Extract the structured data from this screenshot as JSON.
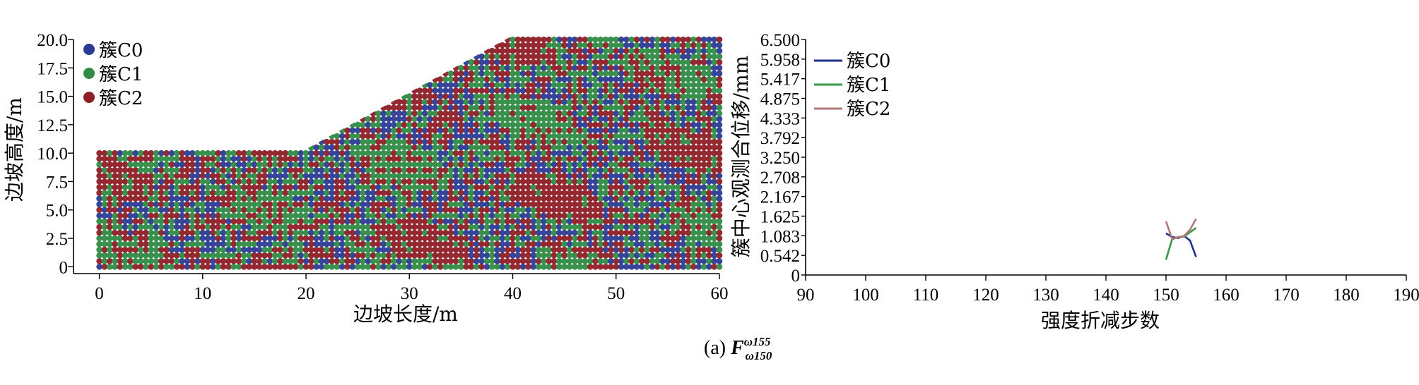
{
  "colors": {
    "c0": "#2b3a94",
    "c1": "#2e8b43",
    "c2": "#8e1e26",
    "line_c0": "#1f2f8c",
    "line_c1": "#3a9a4a",
    "line_c2": "#b07a78"
  },
  "caption": {
    "prefix": "(a) ",
    "base": "F",
    "sup": "ω155",
    "sub": "ω150"
  },
  "chart_data": [
    {
      "type": "scatter",
      "xlabel": "边坡长度/m",
      "ylabel": "边坡高度/m",
      "xlim": [
        -2.5,
        60
      ],
      "ylim": [
        -0.6,
        20
      ],
      "xticks": [
        "0",
        "10",
        "20",
        "30",
        "40",
        "50",
        "60"
      ],
      "xtick_values": [
        0,
        10,
        20,
        30,
        40,
        50,
        60
      ],
      "yticks": [
        "0",
        "2.5",
        "5.0",
        "7.5",
        "10.0",
        "12.5",
        "15.0",
        "17.5",
        "20.0"
      ],
      "ytick_values": [
        0,
        2.5,
        5,
        7.5,
        10,
        12.5,
        15,
        17.5,
        20
      ],
      "slope_outline": [
        [
          0,
          0
        ],
        [
          0,
          10
        ],
        [
          20,
          10
        ],
        [
          40,
          20
        ],
        [
          60,
          20
        ],
        [
          60,
          0
        ]
      ],
      "legend": {
        "position": "top-left",
        "entries": [
          "簇C0",
          "簇C1",
          "簇C2"
        ]
      },
      "series": [
        {
          "name": "簇C0"
        },
        {
          "name": "簇C1"
        },
        {
          "name": "簇C2"
        }
      ]
    },
    {
      "type": "line",
      "xlabel": "强度折减步数",
      "ylabel": "簇中心观测合位移/mm",
      "xlim": [
        90,
        190
      ],
      "ylim": [
        0,
        6.5
      ],
      "xticks": [
        "90",
        "100",
        "110",
        "120",
        "130",
        "140",
        "150",
        "160",
        "170",
        "180",
        "190"
      ],
      "xtick_values": [
        90,
        100,
        110,
        120,
        130,
        140,
        150,
        160,
        170,
        180,
        190
      ],
      "yticks": [
        "0",
        "0.542",
        "1.083",
        "1.625",
        "2.167",
        "2.708",
        "3.250",
        "3.792",
        "4.333",
        "4.875",
        "5.417",
        "5.958",
        "6.500"
      ],
      "ytick_values": [
        0,
        0.542,
        1.083,
        1.625,
        2.167,
        2.708,
        3.25,
        3.792,
        4.333,
        4.875,
        5.417,
        5.958,
        6.5
      ],
      "legend": {
        "position": "top-left",
        "entries": [
          "簇C0",
          "簇C1",
          "簇C2"
        ]
      },
      "x": [
        150,
        151,
        152,
        153,
        154,
        155
      ],
      "series": [
        {
          "name": "簇C0",
          "values": [
            1.15,
            1.05,
            1.02,
            1.08,
            0.95,
            0.5
          ]
        },
        {
          "name": "簇C1",
          "values": [
            0.42,
            0.98,
            1.05,
            1.06,
            1.18,
            1.3
          ]
        },
        {
          "name": "簇C2",
          "values": [
            1.48,
            1.0,
            1.04,
            1.08,
            1.25,
            1.55
          ]
        }
      ]
    }
  ]
}
